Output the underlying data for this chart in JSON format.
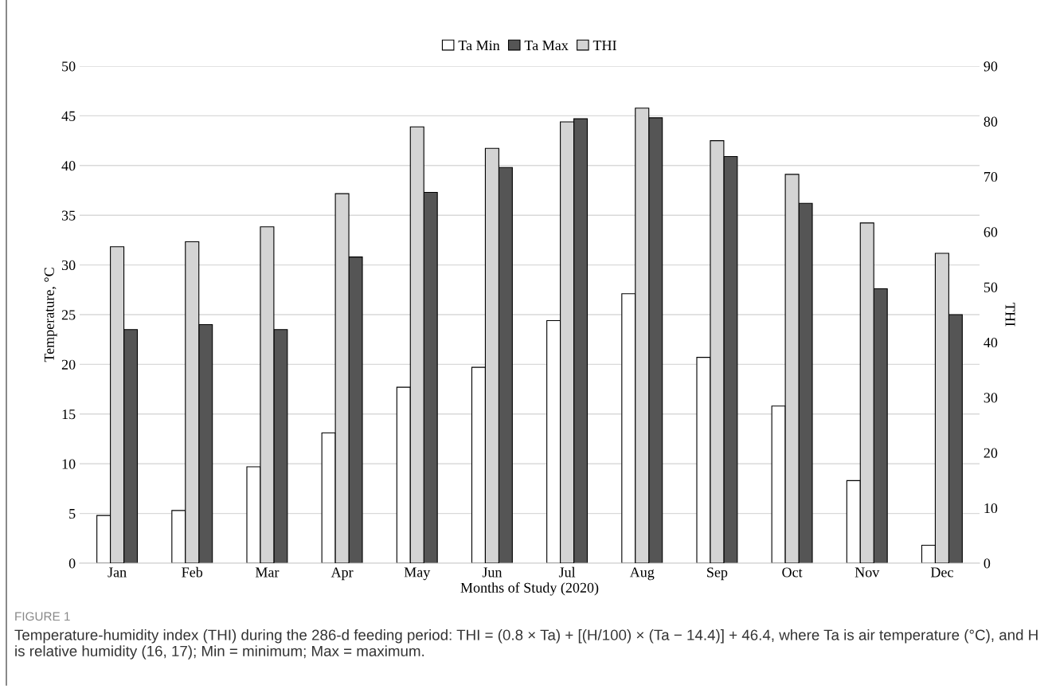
{
  "chart_data": {
    "type": "bar",
    "xlabel": "Months of Study (2020)",
    "ylabel": "Temperature, °C",
    "y2label": "THI",
    "categories": [
      "Jan",
      "Feb",
      "Mar",
      "Apr",
      "May",
      "Jun",
      "Jul",
      "Aug",
      "Sep",
      "Oct",
      "Nov",
      "Dec"
    ],
    "series": [
      {
        "name": "Ta Min",
        "color": "#ffffff",
        "values": [
          4.8,
          5.3,
          9.7,
          13.1,
          17.7,
          19.7,
          24.4,
          27.1,
          20.7,
          15.8,
          8.3,
          1.8
        ]
      },
      {
        "name": "THI",
        "color": "#d4d4d4",
        "axis": "y2",
        "values": [
          57.3,
          58.2,
          60.9,
          66.9,
          79.0,
          75.1,
          79.9,
          82.4,
          76.5,
          70.4,
          61.6,
          56.1
        ]
      },
      {
        "name": "Ta Max",
        "color": "#555555",
        "values": [
          23.5,
          24.0,
          23.5,
          30.8,
          37.3,
          39.8,
          44.7,
          44.8,
          40.9,
          36.2,
          27.6,
          25.0
        ]
      }
    ],
    "ylim": [
      0,
      50
    ],
    "yticks": [
      0,
      5,
      10,
      15,
      20,
      25,
      30,
      35,
      40,
      45,
      50
    ],
    "y2lim": [
      0,
      90
    ],
    "y2ticks": [
      0,
      10,
      20,
      30,
      40,
      50,
      60,
      70,
      80,
      90
    ],
    "grid": "y",
    "legend": "top",
    "annotations": [
      "FIGURE 1",
      "Temperature-humidity index (THI) during the 286-d feeding period: THI = (0.8 × Ta) + [(H/100) × (Ta − 14.4)] + 46.4, where Ta is air temperature (°C), and H is relative humidity (16, 17); Min = minimum; Max = maximum."
    ]
  }
}
